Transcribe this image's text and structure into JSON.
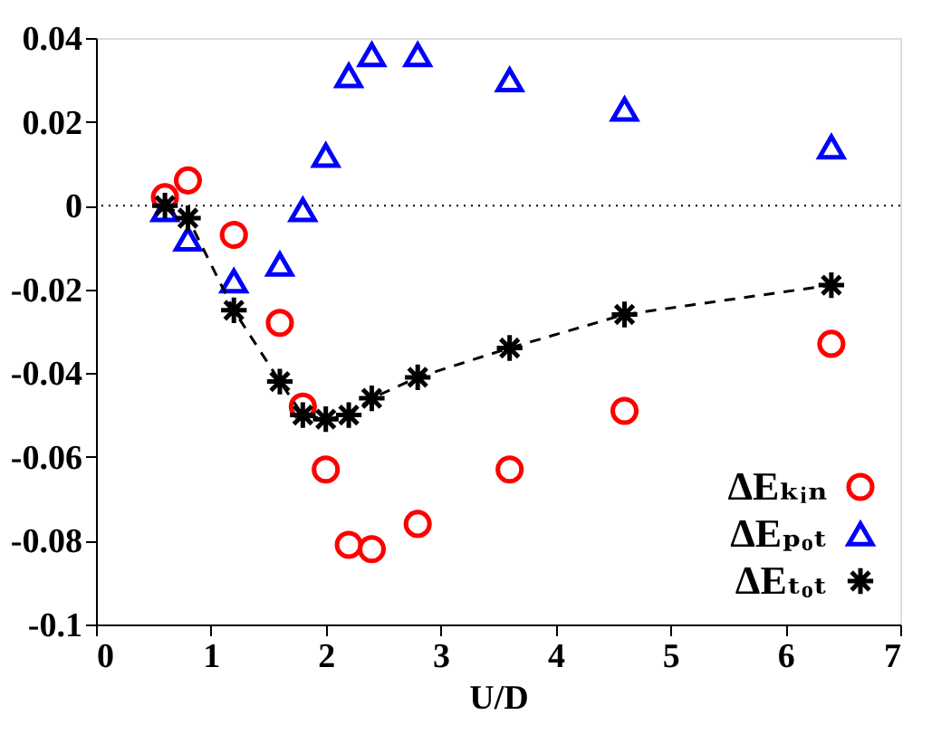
{
  "chart_data": {
    "type": "scatter",
    "xlabel": "U/D",
    "x": [
      0.6,
      0.8,
      1.2,
      1.6,
      1.8,
      2.0,
      2.2,
      2.4,
      2.8,
      3.6,
      4.6,
      6.4
    ],
    "series": [
      {
        "name": "ΔEₖᵢₙ",
        "color": "#ff0000",
        "marker": "circle",
        "values": [
          0.002,
          0.006,
          -0.007,
          -0.028,
          -0.048,
          -0.063,
          -0.081,
          -0.082,
          -0.076,
          -0.063,
          -0.049,
          -0.033
        ]
      },
      {
        "name": "ΔEₚₒₜ",
        "color": "#0000ff",
        "marker": "triangle",
        "values": [
          -0.001,
          -0.008,
          -0.018,
          -0.014,
          -0.001,
          0.012,
          0.031,
          0.036,
          0.036,
          0.03,
          0.023,
          0.014
        ]
      },
      {
        "name": "ΔEₜₒₜ",
        "color": "#000000",
        "type": "line",
        "marker": "cross",
        "line_style": "dashed",
        "values": [
          0.0,
          -0.003,
          -0.025,
          -0.042,
          -0.05,
          -0.051,
          -0.05,
          -0.046,
          -0.041,
          -0.034,
          -0.026,
          -0.019
        ]
      }
    ],
    "xlim": [
      0,
      7
    ],
    "xticks": [
      0,
      1,
      2,
      3,
      4,
      5,
      6,
      7
    ],
    "ylim": [
      -0.1,
      0.04
    ],
    "yticks": [
      -0.1,
      -0.08,
      -0.06,
      -0.04,
      -0.02,
      0,
      0.02,
      0.04
    ],
    "ref_lines": [
      {
        "axis": "y",
        "value": 0,
        "color": "#000000",
        "line_style": "dotted"
      }
    ],
    "grid": false,
    "legend": "bottom right"
  }
}
